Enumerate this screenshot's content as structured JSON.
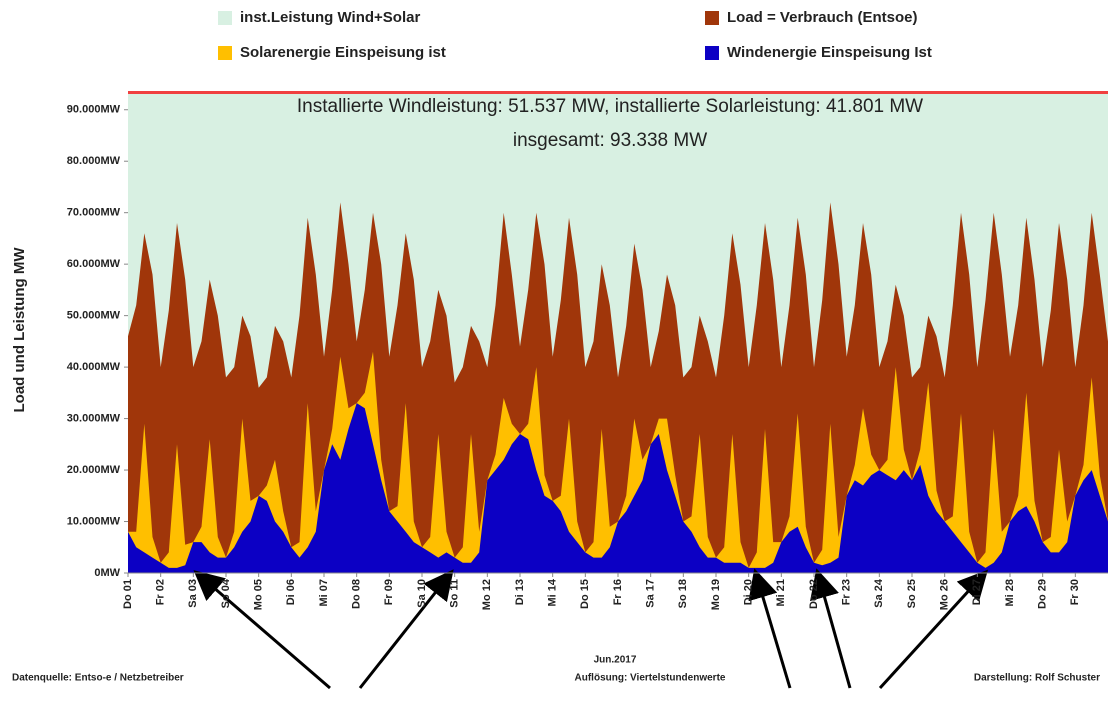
{
  "chart_data": {
    "type": "area",
    "annotation": [
      "Installierte Windleistung: 51.537 MW, installierte Solarleistung: 41.801 MW",
      "insgesamt: 93.338 MW"
    ],
    "ylabel": "Load und Leistung   MW",
    "xlabel": "Jun.2017",
    "footer": [
      "Datenquelle: Entso-e  / Netzbetreiber",
      "Auflösung: Viertelstundenwerte",
      "Darstellung: Rolf Schuster"
    ],
    "reference": {
      "name": "inst.Leistung Wind+Solar",
      "value": 93338,
      "color": "#d8f0e2",
      "line_color": "#f04040"
    },
    "xlim": [
      1,
      31
    ],
    "xticks": [
      {
        "value": 1,
        "label": "Do 01"
      },
      {
        "value": 2,
        "label": "Fr 02"
      },
      {
        "value": 3,
        "label": "Sa 03"
      },
      {
        "value": 4,
        "label": "So 04"
      },
      {
        "value": 5,
        "label": "Mo 05"
      },
      {
        "value": 6,
        "label": "Di 06"
      },
      {
        "value": 7,
        "label": "Mi 07"
      },
      {
        "value": 8,
        "label": "Do 08"
      },
      {
        "value": 9,
        "label": "Fr 09"
      },
      {
        "value": 10,
        "label": "Sa 10"
      },
      {
        "value": 11,
        "label": "So 11"
      },
      {
        "value": 12,
        "label": "Mo 12"
      },
      {
        "value": 13,
        "label": "Di 13"
      },
      {
        "value": 14,
        "label": "Mi 14"
      },
      {
        "value": 15,
        "label": "Do 15"
      },
      {
        "value": 16,
        "label": "Fr 16"
      },
      {
        "value": 17,
        "label": "Sa 17"
      },
      {
        "value": 18,
        "label": "So 18"
      },
      {
        "value": 19,
        "label": "Mo 19"
      },
      {
        "value": 20,
        "label": "Di 20"
      },
      {
        "value": 21,
        "label": "Mi 21"
      },
      {
        "value": 22,
        "label": "Do 22"
      },
      {
        "value": 23,
        "label": "Fr 23"
      },
      {
        "value": 24,
        "label": "Sa 24"
      },
      {
        "value": 25,
        "label": "So 25"
      },
      {
        "value": 26,
        "label": "Mo 26"
      },
      {
        "value": 27,
        "label": "Di 27"
      },
      {
        "value": 28,
        "label": "Mi 28"
      },
      {
        "value": 29,
        "label": "Do 29"
      },
      {
        "value": 30,
        "label": "Fr 30"
      }
    ],
    "ylim": [
      0,
      95000
    ],
    "yticks": [
      {
        "value": 0,
        "label": "0MW"
      },
      {
        "value": 10000,
        "label": "10.000MW"
      },
      {
        "value": 20000,
        "label": "20.000MW"
      },
      {
        "value": 30000,
        "label": "30.000MW"
      },
      {
        "value": 40000,
        "label": "40.000MW"
      },
      {
        "value": 50000,
        "label": "50.000MW"
      },
      {
        "value": 60000,
        "label": "60.000MW"
      },
      {
        "value": 70000,
        "label": "70.000MW"
      },
      {
        "value": 80000,
        "label": "80.000MW"
      },
      {
        "value": 90000,
        "label": "90.000MW"
      }
    ],
    "x": [
      1,
      1.25,
      1.5,
      1.75,
      2,
      2.25,
      2.5,
      2.75,
      3,
      3.25,
      3.5,
      3.75,
      4,
      4.25,
      4.5,
      4.75,
      5,
      5.25,
      5.5,
      5.75,
      6,
      6.25,
      6.5,
      6.75,
      7,
      7.25,
      7.5,
      7.75,
      8,
      8.25,
      8.5,
      8.75,
      9,
      9.25,
      9.5,
      9.75,
      10,
      10.25,
      10.5,
      10.75,
      11,
      11.25,
      11.5,
      11.75,
      12,
      12.25,
      12.5,
      12.75,
      13,
      13.25,
      13.5,
      13.75,
      14,
      14.25,
      14.5,
      14.75,
      15,
      15.25,
      15.5,
      15.75,
      16,
      16.25,
      16.5,
      16.75,
      17,
      17.25,
      17.5,
      17.75,
      18,
      18.25,
      18.5,
      18.75,
      19,
      19.25,
      19.5,
      19.75,
      20,
      20.25,
      20.5,
      20.75,
      21,
      21.25,
      21.5,
      21.75,
      22,
      22.25,
      22.5,
      22.75,
      23,
      23.25,
      23.5,
      23.75,
      24,
      24.25,
      24.5,
      24.75,
      25,
      25.25,
      25.5,
      25.75,
      26,
      26.25,
      26.5,
      26.75,
      27,
      27.25,
      27.5,
      27.75,
      28,
      28.25,
      28.5,
      28.75,
      29,
      29.25,
      29.5,
      29.75,
      30,
      30.25,
      30.5,
      30.75,
      31
    ],
    "series": [
      {
        "name": "Load =  Verbrauch (Entsoe)",
        "color": "#a0360a",
        "stack": false,
        "values": [
          46000,
          52000,
          66000,
          58000,
          40000,
          51000,
          68000,
          57000,
          40000,
          45000,
          57000,
          50000,
          38000,
          40000,
          50000,
          46000,
          36000,
          38000,
          48000,
          45000,
          38000,
          50000,
          69000,
          58000,
          42000,
          55000,
          72000,
          60000,
          45000,
          55000,
          70000,
          60000,
          42000,
          52000,
          66000,
          57000,
          40000,
          45000,
          55000,
          50000,
          37000,
          40000,
          48000,
          45000,
          40000,
          52000,
          70000,
          58000,
          44000,
          55000,
          70000,
          60000,
          42000,
          53000,
          69000,
          58000,
          40000,
          45000,
          60000,
          52000,
          38000,
          48000,
          64000,
          55000,
          40000,
          47000,
          58000,
          52000,
          38000,
          40000,
          50000,
          45000,
          38000,
          50000,
          66000,
          56000,
          40000,
          52000,
          68000,
          57000,
          40000,
          52000,
          69000,
          58000,
          40000,
          53000,
          72000,
          60000,
          42000,
          52000,
          68000,
          58000,
          40000,
          45000,
          56000,
          50000,
          38000,
          40000,
          50000,
          46000,
          38000,
          52000,
          70000,
          58000,
          40000,
          53000,
          70000,
          58000,
          42000,
          52000,
          69000,
          57000,
          40000,
          51000,
          68000,
          57000,
          40000,
          52000,
          70000,
          58000,
          45000
        ]
      },
      {
        "name": "Windenergie Einspeisung Ist",
        "color": "#0c00c4",
        "stack": true,
        "values": [
          8000,
          5000,
          4000,
          3000,
          2000,
          1000,
          1000,
          1500,
          6000,
          6000,
          4000,
          3000,
          3000,
          5000,
          8000,
          10000,
          15000,
          14000,
          10000,
          8000,
          5000,
          3000,
          5000,
          8000,
          20000,
          25000,
          22000,
          28000,
          33000,
          32000,
          25000,
          18000,
          12000,
          10000,
          8000,
          6000,
          5000,
          4000,
          3000,
          4000,
          3000,
          2000,
          2000,
          4000,
          18000,
          20000,
          22000,
          25000,
          27000,
          26000,
          20000,
          15000,
          14000,
          12000,
          8000,
          6000,
          4000,
          3000,
          3000,
          5000,
          10000,
          12000,
          15000,
          18000,
          25000,
          27000,
          20000,
          15000,
          10000,
          8000,
          5000,
          3000,
          3000,
          2000,
          2000,
          2000,
          1000,
          1000,
          1000,
          2000,
          6000,
          8000,
          9000,
          5000,
          2000,
          1500,
          2000,
          3000,
          15000,
          18000,
          17000,
          19000,
          20000,
          19000,
          18000,
          20000,
          18000,
          21000,
          15000,
          12000,
          10000,
          8000,
          6000,
          4000,
          2000,
          1000,
          2000,
          4000,
          10000,
          12000,
          13000,
          10000,
          6000,
          4000,
          4000,
          6000,
          15000,
          18000,
          20000,
          15000,
          10000
        ]
      },
      {
        "name": "Solarenergie Einspeisung ist",
        "color": "#ffbf00",
        "stack": true,
        "values": [
          0,
          3000,
          25000,
          4000,
          0,
          3000,
          24000,
          4000,
          0,
          3000,
          22000,
          4000,
          0,
          3000,
          22000,
          4000,
          0,
          3000,
          12000,
          4000,
          0,
          3000,
          28000,
          4000,
          0,
          3000,
          20000,
          4000,
          0,
          3000,
          18000,
          4000,
          0,
          3000,
          25000,
          4000,
          0,
          3000,
          24000,
          4000,
          0,
          3000,
          25000,
          4000,
          0,
          3000,
          12000,
          4000,
          0,
          3000,
          20000,
          4000,
          0,
          3000,
          22000,
          4000,
          0,
          3000,
          25000,
          4000,
          0,
          3000,
          15000,
          4000,
          0,
          3000,
          10000,
          4000,
          0,
          3000,
          22000,
          4000,
          0,
          3000,
          25000,
          4000,
          0,
          3000,
          27000,
          4000,
          0,
          3000,
          22000,
          4000,
          0,
          3000,
          27000,
          4000,
          0,
          3000,
          15000,
          4000,
          0,
          3000,
          22000,
          4000,
          0,
          3000,
          22000,
          4000,
          0,
          3000,
          25000,
          4000,
          0,
          3000,
          26000,
          4000,
          0,
          3000,
          22000,
          4000,
          0,
          3000,
          20000,
          4000,
          0,
          3000,
          18000,
          4000,
          0
        ]
      }
    ]
  }
}
